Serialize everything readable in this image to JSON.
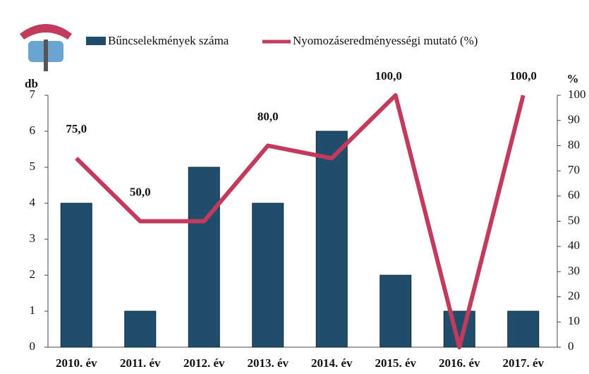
{
  "chart_data": {
    "type": "bar-line",
    "categories": [
      "2010. év",
      "2011. év",
      "2012. év",
      "2013. év",
      "2014. év",
      "2015. év",
      "2016. év",
      "2017. év"
    ],
    "series": [
      {
        "name": "Bűncselekmények száma",
        "type": "bar",
        "color": "#1f4d6b",
        "values": [
          4,
          1,
          5,
          4,
          6,
          2,
          1,
          1
        ]
      },
      {
        "name": "Nyomozáseredményességi mutató (%)",
        "type": "line",
        "axis": "y2",
        "color": "#c23a5c",
        "values": [
          75,
          50,
          50,
          80,
          75,
          100,
          0,
          100
        ],
        "value_labels": [
          "75,0",
          "50,0",
          null,
          "80,0",
          null,
          "100,0",
          null,
          "100,0"
        ]
      }
    ],
    "y_label": "db",
    "y2_label": "%",
    "ylim": [
      0,
      7
    ],
    "yticks": [
      0,
      1,
      2,
      3,
      4,
      5,
      6,
      7
    ],
    "y2lim": [
      0,
      100
    ],
    "y2ticks": [
      0,
      10,
      20,
      30,
      40,
      50,
      60,
      70,
      80,
      90,
      100
    ]
  }
}
